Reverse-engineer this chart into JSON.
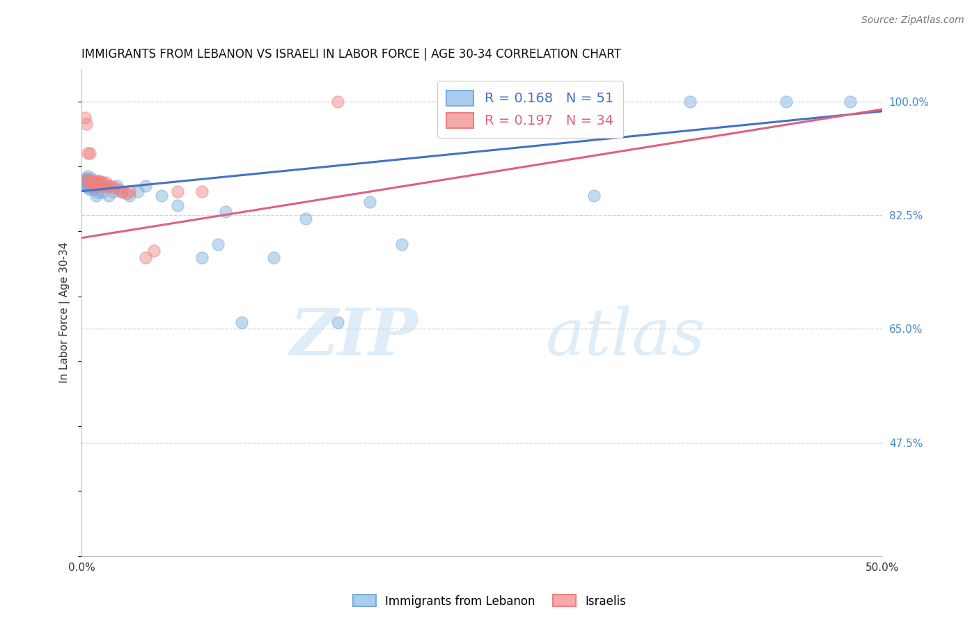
{
  "title": "IMMIGRANTS FROM LEBANON VS ISRAELI IN LABOR FORCE | AGE 30-34 CORRELATION CHART",
  "source": "Source: ZipAtlas.com",
  "ylabel": "In Labor Force | Age 30-34",
  "xlim": [
    0.0,
    0.5
  ],
  "ylim": [
    0.3,
    1.05
  ],
  "yticks": [
    0.475,
    0.65,
    0.825,
    1.0
  ],
  "yticklabels_right": [
    "47.5%",
    "65.0%",
    "82.5%",
    "100.0%"
  ],
  "grid_color": "#c8c8c8",
  "background_color": "#ffffff",
  "blue_color": "#7aaddb",
  "pink_color": "#f08080",
  "blue_line_color": "#4472c4",
  "pink_line_color": "#e06080",
  "legend_R_blue": "0.168",
  "legend_N_blue": "51",
  "legend_R_pink": "0.197",
  "legend_N_pink": "34",
  "blue_x": [
    0.001,
    0.002,
    0.002,
    0.003,
    0.003,
    0.003,
    0.004,
    0.004,
    0.004,
    0.005,
    0.005,
    0.005,
    0.005,
    0.006,
    0.006,
    0.006,
    0.007,
    0.007,
    0.007,
    0.008,
    0.008,
    0.009,
    0.009,
    0.01,
    0.01,
    0.011,
    0.012,
    0.013,
    0.015,
    0.017,
    0.02,
    0.022,
    0.025,
    0.03,
    0.035,
    0.04,
    0.05,
    0.06,
    0.075,
    0.085,
    0.09,
    0.1,
    0.12,
    0.14,
    0.16,
    0.18,
    0.2,
    0.32,
    0.38,
    0.44,
    0.48
  ],
  "blue_y": [
    0.875,
    0.88,
    0.87,
    0.878,
    0.87,
    0.882,
    0.875,
    0.868,
    0.885,
    0.878,
    0.872,
    0.875,
    0.865,
    0.878,
    0.87,
    0.882,
    0.875,
    0.865,
    0.878,
    0.872,
    0.868,
    0.875,
    0.855,
    0.875,
    0.86,
    0.87,
    0.875,
    0.86,
    0.87,
    0.855,
    0.862,
    0.87,
    0.86,
    0.855,
    0.862,
    0.87,
    0.855,
    0.84,
    0.76,
    0.78,
    0.83,
    0.66,
    0.76,
    0.82,
    0.66,
    0.845,
    0.78,
    0.855,
    1.0,
    1.0,
    1.0
  ],
  "pink_x": [
    0.002,
    0.003,
    0.003,
    0.004,
    0.005,
    0.005,
    0.006,
    0.006,
    0.007,
    0.007,
    0.007,
    0.008,
    0.008,
    0.009,
    0.009,
    0.01,
    0.01,
    0.011,
    0.012,
    0.013,
    0.014,
    0.015,
    0.016,
    0.018,
    0.02,
    0.023,
    0.025,
    0.028,
    0.03,
    0.04,
    0.045,
    0.06,
    0.075,
    0.16
  ],
  "pink_y": [
    0.975,
    0.965,
    0.88,
    0.92,
    0.92,
    0.878,
    0.875,
    0.878,
    0.875,
    0.87,
    0.878,
    0.875,
    0.87,
    0.875,
    0.87,
    0.878,
    0.87,
    0.878,
    0.87,
    0.875,
    0.87,
    0.875,
    0.87,
    0.87,
    0.868,
    0.865,
    0.862,
    0.858,
    0.862,
    0.76,
    0.77,
    0.862,
    0.862,
    1.0
  ],
  "blue_trend_x": [
    0.0,
    0.5
  ],
  "blue_trend_y": [
    0.862,
    0.985
  ],
  "pink_trend_x": [
    0.0,
    0.5
  ],
  "pink_trend_y": [
    0.79,
    0.988
  ],
  "watermark_zip": "ZIP",
  "watermark_atlas": "atlas",
  "legend_label_blue": "Immigrants from Lebanon",
  "legend_label_pink": "Israelis"
}
